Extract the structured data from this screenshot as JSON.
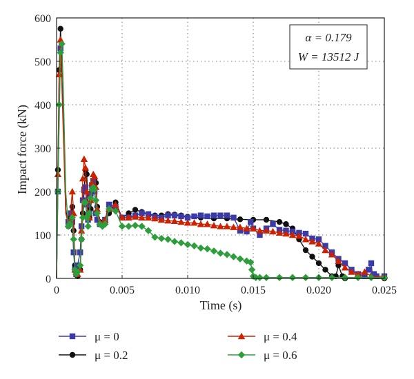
{
  "chart_data": {
    "type": "line",
    "title": "",
    "xlabel": "Time (s)",
    "ylabel": "Impact force (kN)",
    "xlim": [
      0,
      0.025
    ],
    "ylim": [
      0,
      600
    ],
    "xticks": [
      0,
      0.005,
      0.01,
      0.015,
      0.02,
      0.025
    ],
    "xtick_labels": [
      "0",
      "0.005",
      "0.010",
      "0.015",
      "0.020",
      "0.025"
    ],
    "yticks": [
      0,
      100,
      200,
      300,
      400,
      500,
      600
    ],
    "ytick_labels": [
      "0",
      "100",
      "200",
      "300",
      "400",
      "500",
      "600"
    ],
    "grid": true,
    "legend_position": "bottom",
    "annotation": {
      "line1": "α = 0.179",
      "line2": "W = 13512 J"
    },
    "series": [
      {
        "name": "μ = 0",
        "legend_label": "μ = 0",
        "color": "#3b3ba8",
        "marker": "square",
        "x": [
          0,
          0.0001,
          0.0003,
          0.0005,
          0.0007,
          0.0009,
          0.0011,
          0.0012,
          0.0013,
          0.0014,
          0.0015,
          0.0016,
          0.0018,
          0.0019,
          0.002,
          0.0021,
          0.0022,
          0.0023,
          0.0024,
          0.0025,
          0.0026,
          0.0027,
          0.0028,
          0.0029,
          0.003,
          0.0031,
          0.0033,
          0.0035,
          0.0037,
          0.004,
          0.0045,
          0.005,
          0.0055,
          0.006,
          0.0065,
          0.007,
          0.0075,
          0.008,
          0.0085,
          0.009,
          0.0095,
          0.01,
          0.0105,
          0.011,
          0.0115,
          0.012,
          0.0125,
          0.013,
          0.0135,
          0.014,
          0.0145,
          0.0148,
          0.015,
          0.0155,
          0.016,
          0.0165,
          0.017,
          0.0175,
          0.018,
          0.0185,
          0.019,
          0.0195,
          0.02,
          0.0205,
          0.021,
          0.0215,
          0.022,
          0.0225,
          0.023,
          0.0235,
          0.0238,
          0.024,
          0.0241,
          0.0242,
          0.0244,
          0.025
        ],
        "y": [
          0,
          200,
          530,
          400,
          150,
          130,
          150,
          130,
          60,
          20,
          10,
          30,
          60,
          120,
          180,
          205,
          210,
          170,
          135,
          150,
          195,
          215,
          225,
          200,
          150,
          135,
          125,
          125,
          135,
          170,
          165,
          140,
          140,
          145,
          150,
          148,
          142,
          140,
          145,
          145,
          143,
          140,
          143,
          145,
          143,
          145,
          145,
          145,
          140,
          110,
          108,
          130,
          115,
          100,
          115,
          125,
          112,
          110,
          108,
          105,
          103,
          92,
          90,
          75,
          60,
          45,
          35,
          20,
          10,
          5,
          20,
          35,
          5,
          10,
          5,
          5
        ]
      },
      {
        "name": "μ = 0.2",
        "legend_label": "μ = 0.2",
        "color": "#111111",
        "marker": "circle",
        "x": [
          0,
          0.0001,
          0.0002,
          0.0003,
          0.0005,
          0.0007,
          0.0009,
          0.001,
          0.0012,
          0.0013,
          0.0014,
          0.0015,
          0.0016,
          0.0018,
          0.0019,
          0.002,
          0.0021,
          0.0022,
          0.0023,
          0.0024,
          0.0025,
          0.0026,
          0.0027,
          0.0028,
          0.0029,
          0.003,
          0.0031,
          0.0033,
          0.0035,
          0.0037,
          0.004,
          0.0045,
          0.005,
          0.0055,
          0.006,
          0.0065,
          0.007,
          0.0075,
          0.008,
          0.0085,
          0.009,
          0.0095,
          0.01,
          0.011,
          0.012,
          0.013,
          0.014,
          0.015,
          0.016,
          0.017,
          0.0175,
          0.018,
          0.0185,
          0.019,
          0.0195,
          0.02,
          0.0205,
          0.021,
          0.0213,
          0.0215,
          0.0218,
          0.022,
          0.025
        ],
        "y": [
          0,
          250,
          480,
          575,
          380,
          160,
          120,
          140,
          165,
          110,
          30,
          10,
          5,
          20,
          90,
          150,
          200,
          250,
          240,
          170,
          140,
          160,
          200,
          225,
          230,
          220,
          165,
          130,
          125,
          130,
          150,
          175,
          140,
          150,
          158,
          153,
          148,
          145,
          145,
          148,
          147,
          145,
          142,
          140,
          138,
          138,
          136,
          135,
          135,
          130,
          125,
          115,
          90,
          65,
          50,
          35,
          20,
          5,
          5,
          30,
          5,
          0,
          0
        ]
      },
      {
        "name": "μ = 0.4",
        "legend_label": "μ = 0.4",
        "color": "#cc2200",
        "marker": "triangle",
        "x": [
          0,
          0.0001,
          0.0002,
          0.0003,
          0.0005,
          0.0007,
          0.0009,
          0.001,
          0.0012,
          0.0013,
          0.0014,
          0.0015,
          0.0016,
          0.0018,
          0.0019,
          0.002,
          0.0021,
          0.0022,
          0.0023,
          0.0024,
          0.0025,
          0.0026,
          0.0027,
          0.0028,
          0.0029,
          0.003,
          0.0031,
          0.0033,
          0.0035,
          0.0037,
          0.004,
          0.0045,
          0.005,
          0.0055,
          0.006,
          0.0065,
          0.007,
          0.0075,
          0.008,
          0.0085,
          0.009,
          0.0095,
          0.01,
          0.0105,
          0.011,
          0.0115,
          0.012,
          0.0125,
          0.013,
          0.0135,
          0.014,
          0.0145,
          0.015,
          0.0155,
          0.016,
          0.0165,
          0.017,
          0.0175,
          0.018,
          0.0185,
          0.019,
          0.0195,
          0.02,
          0.0205,
          0.021,
          0.0215,
          0.022,
          0.0225,
          0.023,
          0.0235,
          0.024,
          0.025
        ],
        "y": [
          0,
          240,
          470,
          550,
          350,
          150,
          125,
          130,
          200,
          150,
          20,
          15,
          10,
          20,
          110,
          230,
          275,
          255,
          200,
          150,
          140,
          180,
          220,
          240,
          235,
          210,
          160,
          130,
          125,
          135,
          160,
          170,
          140,
          140,
          142,
          140,
          140,
          138,
          135,
          133,
          132,
          130,
          128,
          128,
          125,
          125,
          122,
          120,
          120,
          118,
          118,
          115,
          115,
          110,
          110,
          108,
          105,
          103,
          100,
          98,
          90,
          85,
          80,
          65,
          55,
          40,
          25,
          15,
          10,
          15,
          5,
          5
        ]
      },
      {
        "name": "μ = 0.6",
        "legend_label": "μ = 0.6",
        "color": "#2e9e3c",
        "marker": "diamond",
        "x": [
          0,
          0.0001,
          0.0002,
          0.0003,
          0.0004,
          0.0005,
          0.0007,
          0.0009,
          0.001,
          0.0012,
          0.0013,
          0.0014,
          0.0015,
          0.0016,
          0.0018,
          0.0019,
          0.002,
          0.0021,
          0.0022,
          0.0023,
          0.0024,
          0.0025,
          0.0026,
          0.0027,
          0.0028,
          0.0029,
          0.003,
          0.0031,
          0.0033,
          0.0035,
          0.0037,
          0.004,
          0.0045,
          0.005,
          0.0055,
          0.006,
          0.0065,
          0.007,
          0.0075,
          0.008,
          0.0085,
          0.009,
          0.0095,
          0.01,
          0.0105,
          0.011,
          0.0115,
          0.012,
          0.0125,
          0.013,
          0.0135,
          0.014,
          0.0145,
          0.0148,
          0.0149,
          0.015,
          0.0152,
          0.0155,
          0.016,
          0.017,
          0.018,
          0.019,
          0.02,
          0.021,
          0.022,
          0.023,
          0.024,
          0.025
        ],
        "y": [
          0,
          200,
          400,
          520,
          540,
          450,
          200,
          120,
          125,
          140,
          90,
          20,
          10,
          15,
          30,
          90,
          140,
          175,
          175,
          140,
          120,
          150,
          185,
          205,
          210,
          205,
          180,
          150,
          125,
          120,
          125,
          160,
          155,
          120,
          120,
          122,
          120,
          110,
          95,
          92,
          90,
          85,
          82,
          78,
          75,
          70,
          68,
          63,
          58,
          55,
          50,
          45,
          40,
          37,
          20,
          5,
          2,
          2,
          2,
          2,
          2,
          2,
          2,
          2,
          2,
          2,
          2,
          2
        ]
      }
    ]
  }
}
